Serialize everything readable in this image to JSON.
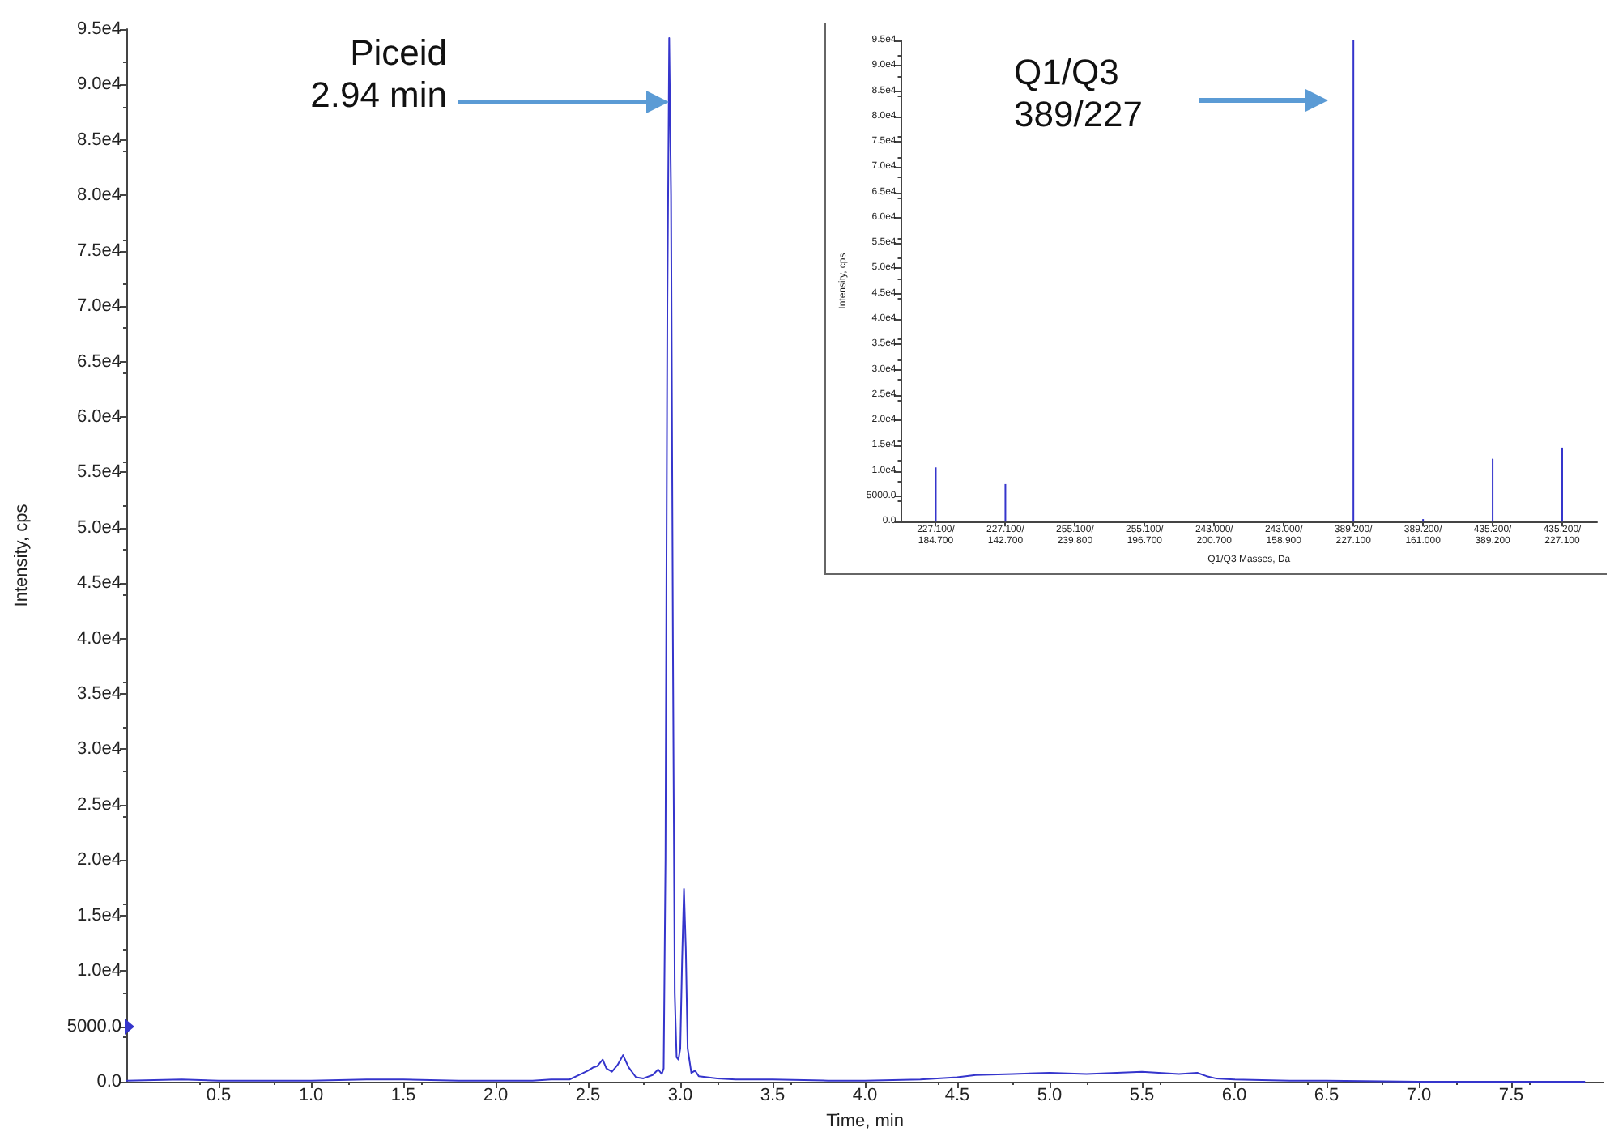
{
  "chart_data": [
    {
      "type": "line",
      "xlabel": "Time, min",
      "ylabel": "Intensity, cps",
      "color": "#3535cc",
      "x": [
        0,
        0.3,
        0.5,
        0.8,
        1.0,
        1.3,
        1.5,
        1.8,
        2.0,
        2.2,
        2.3,
        2.4,
        2.45,
        2.5,
        2.53,
        2.55,
        2.58,
        2.6,
        2.63,
        2.66,
        2.69,
        2.72,
        2.76,
        2.8,
        2.85,
        2.88,
        2.9,
        2.91,
        2.92,
        2.93,
        2.94,
        2.95,
        2.96,
        2.97,
        2.98,
        2.99,
        3.0,
        3.01,
        3.02,
        3.03,
        3.04,
        3.06,
        3.08,
        3.1,
        3.2,
        3.3,
        3.5,
        3.8,
        4.0,
        4.3,
        4.5,
        4.6,
        4.8,
        5.0,
        5.2,
        5.5,
        5.7,
        5.8,
        5.85,
        5.9,
        6.0,
        6.3,
        6.5,
        7.0,
        7.5,
        7.9
      ],
      "values": [
        100,
        200,
        100,
        100,
        100,
        200,
        200,
        100,
        100,
        100,
        200,
        200,
        600,
        1000,
        1300,
        1400,
        2000,
        1200,
        900,
        1500,
        2400,
        1300,
        400,
        300,
        600,
        1100,
        700,
        1200,
        20000,
        70000,
        94200,
        80000,
        40000,
        8000,
        2200,
        2000,
        3000,
        11000,
        17400,
        12000,
        3000,
        800,
        1000,
        500,
        300,
        200,
        200,
        100,
        100,
        200,
        400,
        600,
        700,
        800,
        700,
        900,
        700,
        800,
        500,
        300,
        200,
        100,
        100,
        0,
        0,
        0
      ],
      "xlim": [
        0,
        8
      ],
      "xticks": [
        0.5,
        {
          "value": 1,
          "label": "1.0"
        },
        1.5,
        {
          "value": 2,
          "label": "2.0"
        },
        2.5,
        {
          "value": 3,
          "label": "3.0"
        },
        3.5,
        {
          "value": 4,
          "label": "4.0"
        },
        4.5,
        {
          "value": 5,
          "label": "5.0"
        },
        5.5,
        {
          "value": 6,
          "label": "6.0"
        },
        6.5,
        {
          "value": 7,
          "label": "7.0"
        },
        7.5
      ],
      "ylim": [
        0,
        95000
      ],
      "yticks": [
        {
          "value": 0,
          "label": "0.0"
        },
        {
          "value": 5000,
          "label": "5000.0"
        },
        {
          "value": 10000,
          "label": "1.0e4"
        },
        {
          "value": 15000,
          "label": "1.5e4"
        },
        {
          "value": 20000,
          "label": "2.0e4"
        },
        {
          "value": 25000,
          "label": "2.5e4"
        },
        {
          "value": 30000,
          "label": "3.0e4"
        },
        {
          "value": 35000,
          "label": "3.5e4"
        },
        {
          "value": 40000,
          "label": "4.0e4"
        },
        {
          "value": 45000,
          "label": "4.5e4"
        },
        {
          "value": 50000,
          "label": "5.0e4"
        },
        {
          "value": 55000,
          "label": "5.5e4"
        },
        {
          "value": 60000,
          "label": "6.0e4"
        },
        {
          "value": 65000,
          "label": "6.5e4"
        },
        {
          "value": 70000,
          "label": "7.0e4"
        },
        {
          "value": 75000,
          "label": "7.5e4"
        },
        {
          "value": 80000,
          "label": "8.0e4"
        },
        {
          "value": 85000,
          "label": "8.5e4"
        },
        {
          "value": 90000,
          "label": "9.0e4"
        },
        {
          "value": 95000,
          "label": "9.5e4"
        }
      ],
      "annotations": [
        "Piceid\n2.94 min"
      ]
    },
    {
      "type": "bar",
      "xlabel": "Q1/Q3 Masses, Da",
      "ylabel": "Intensity, cps",
      "color": "#3535cc",
      "categories": [
        "227.100/184.700",
        "227.100/142.700",
        "255.100/239.800",
        "255.100/196.700",
        "243.000/200.700",
        "243.000/158.900",
        "389.200/227.100",
        "389.200/161.000",
        "435.200/389.200",
        "435.200/227.100"
      ],
      "values": [
        10700,
        7400,
        0,
        0,
        0,
        0,
        95000,
        500,
        12400,
        14600
      ],
      "ylim": [
        0,
        95000
      ],
      "yticks": [
        {
          "value": 0,
          "label": "0.0"
        },
        {
          "value": 5000,
          "label": "5000.0"
        },
        {
          "value": 10000,
          "label": "1.0e4"
        },
        {
          "value": 15000,
          "label": "1.5e4"
        },
        {
          "value": 20000,
          "label": "2.0e4"
        },
        {
          "value": 25000,
          "label": "2.5e4"
        },
        {
          "value": 30000,
          "label": "3.0e4"
        },
        {
          "value": 35000,
          "label": "3.5e4"
        },
        {
          "value": 40000,
          "label": "4.0e4"
        },
        {
          "value": 45000,
          "label": "4.5e4"
        },
        {
          "value": 50000,
          "label": "5.0e4"
        },
        {
          "value": 55000,
          "label": "5.5e4"
        },
        {
          "value": 60000,
          "label": "6.0e4"
        },
        {
          "value": 65000,
          "label": "6.5e4"
        },
        {
          "value": 70000,
          "label": "7.0e4"
        },
        {
          "value": 75000,
          "label": "7.5e4"
        },
        {
          "value": 80000,
          "label": "8.0e4"
        },
        {
          "value": 85000,
          "label": "8.5e4"
        },
        {
          "value": 90000,
          "label": "9.0e4"
        },
        {
          "value": 95000,
          "label": "9.5e4"
        }
      ],
      "annotations": [
        "Q1/Q3\n389/227"
      ]
    }
  ]
}
